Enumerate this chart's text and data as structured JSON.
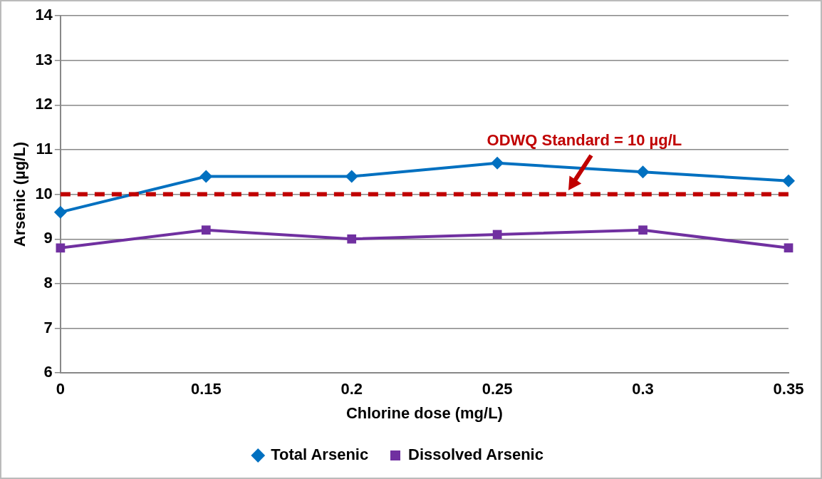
{
  "chart_data": {
    "type": "line",
    "xlabel": "Chlorine dose (mg/L)",
    "ylabel": "Arsenic (µg/L)",
    "categories": [
      "0",
      "0.15",
      "0.2",
      "0.25",
      "0.3",
      "0.35"
    ],
    "series": [
      {
        "name": "Total Arsenic",
        "color": "#0070c0",
        "marker": "diamond",
        "values": [
          9.6,
          10.4,
          10.4,
          10.7,
          10.5,
          10.3
        ]
      },
      {
        "name": "Dissolved Arsenic",
        "color": "#7030a0",
        "marker": "square",
        "values": [
          8.8,
          9.2,
          9.0,
          9.1,
          9.2,
          8.8
        ]
      }
    ],
    "ylim": [
      6,
      14
    ],
    "yticks": [
      6,
      7,
      8,
      9,
      10,
      11,
      12,
      13,
      14
    ],
    "grid": "y",
    "legend": "bottom",
    "line_style": "solid",
    "ref_lines": [
      {
        "axis": "y",
        "value": 10,
        "label": "ODWQ Standard = 10 µg/L",
        "color": "#c00000",
        "line_style": "dashed"
      }
    ]
  }
}
